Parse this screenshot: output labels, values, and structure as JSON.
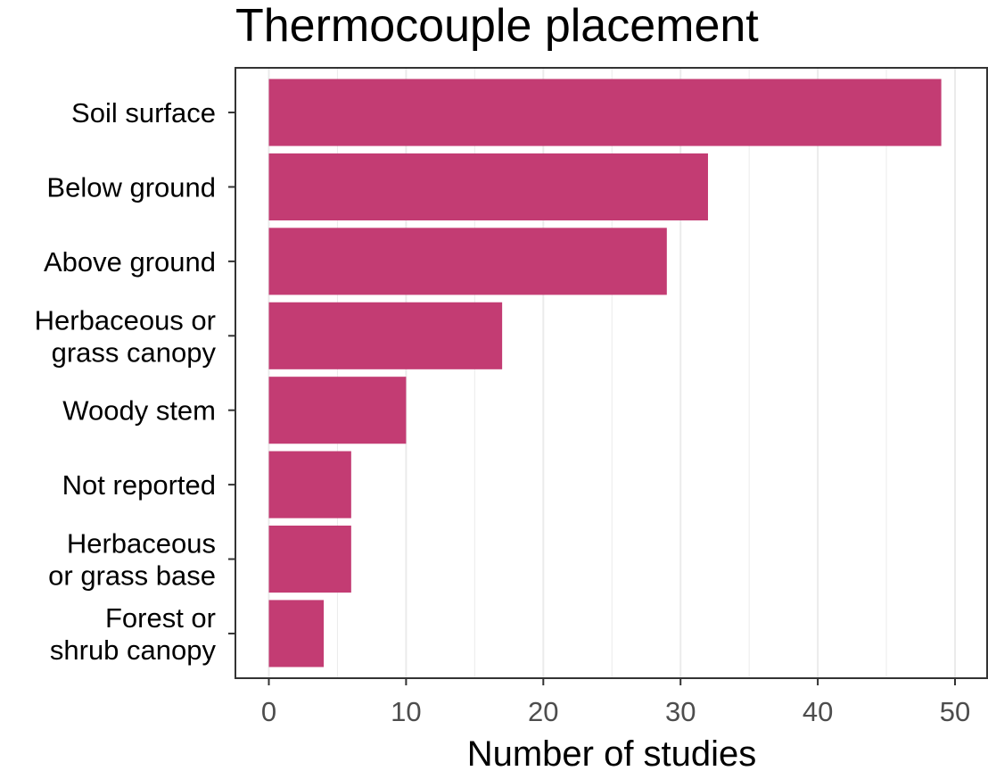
{
  "chart_data": {
    "type": "bar",
    "orientation": "horizontal",
    "title": "Thermocouple placement",
    "xlabel": "Number of studies",
    "ylabel": "",
    "categories": [
      [
        "Soil surface"
      ],
      [
        "Below ground"
      ],
      [
        "Above ground"
      ],
      [
        "Herbaceous or",
        "grass canopy"
      ],
      [
        "Woody stem"
      ],
      [
        "Not reported"
      ],
      [
        "Herbaceous",
        "or grass base"
      ],
      [
        "Forest or",
        "shrub canopy"
      ]
    ],
    "values": [
      49,
      32,
      29,
      17,
      10,
      6,
      6,
      4
    ],
    "xlim": [
      0,
      50
    ],
    "x_ticks": [
      "0",
      "10",
      "20",
      "30",
      "40",
      "50"
    ],
    "grid": "vertical",
    "bar_color": "#c33c73",
    "grid_color": "#ebebeb",
    "axis_color": "#333333"
  }
}
